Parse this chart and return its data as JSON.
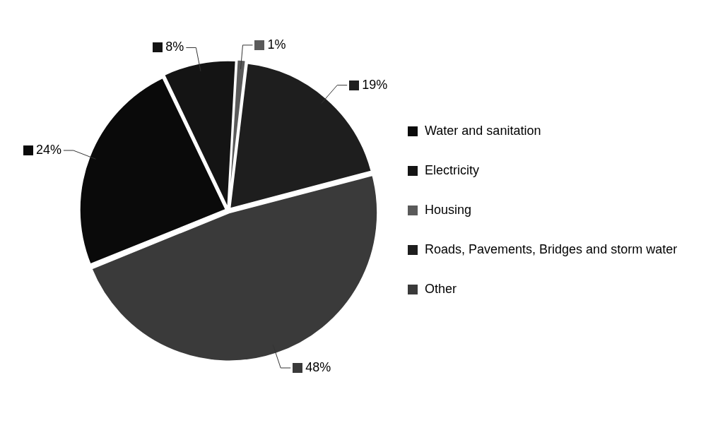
{
  "chart_data": {
    "type": "pie",
    "categories": [
      "Water and sanitation",
      "Electricity",
      "Housing",
      "Roads, Pavements, Bridges and storm water",
      "Other"
    ],
    "values": [
      24,
      8,
      1,
      19,
      48
    ],
    "colors": [
      "#0a0a0a",
      "#141414",
      "#5a5a5a",
      "#1e1e1e",
      "#3a3a3a"
    ],
    "value_labels": [
      "24%",
      "8%",
      "1%",
      "19%",
      "48%"
    ],
    "legend": "right"
  }
}
